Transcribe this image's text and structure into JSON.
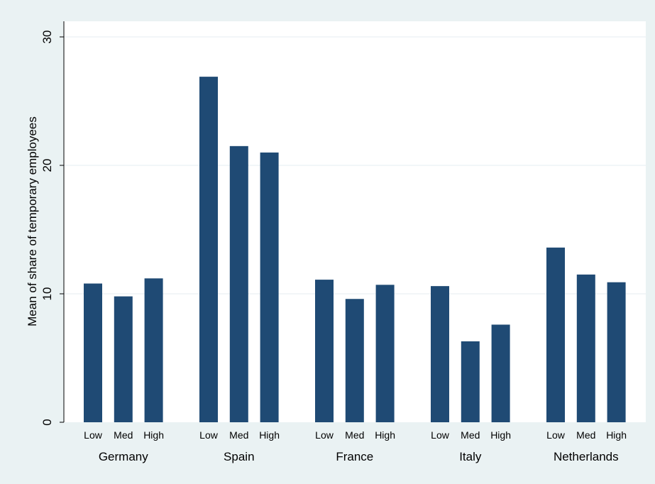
{
  "chart_data": {
    "type": "bar",
    "ylabel": "Mean of share of temporary employees",
    "ylim": [
      0,
      30
    ],
    "yticks": [
      0,
      10,
      20,
      30
    ],
    "grid": true,
    "bar_color": "#1f4a74",
    "plot_background": "#ffffff",
    "outer_background": "#eaf2f3",
    "groups": [
      {
        "name": "Germany",
        "categories": [
          "Low",
          "Med",
          "High"
        ],
        "values": [
          10.8,
          9.8,
          11.2
        ]
      },
      {
        "name": "Spain",
        "categories": [
          "Low",
          "Med",
          "High"
        ],
        "values": [
          26.9,
          21.5,
          21.0
        ]
      },
      {
        "name": "France",
        "categories": [
          "Low",
          "Med",
          "High"
        ],
        "values": [
          11.1,
          9.6,
          10.7
        ]
      },
      {
        "name": "Italy",
        "categories": [
          "Low",
          "Med",
          "High"
        ],
        "values": [
          10.6,
          6.3,
          7.6
        ]
      },
      {
        "name": "Netherlands",
        "categories": [
          "Low",
          "Med",
          "High"
        ],
        "values": [
          13.6,
          11.5,
          10.9
        ]
      }
    ]
  }
}
